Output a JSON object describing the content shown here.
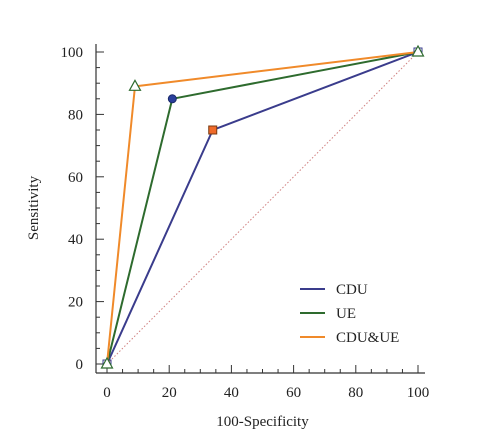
{
  "chart_data": {
    "type": "line",
    "title": "",
    "xlabel": "100-Specificity",
    "ylabel": "Sensitivity",
    "xlim": [
      0,
      100
    ],
    "ylim": [
      0,
      100
    ],
    "x_ticks": [
      0,
      20,
      40,
      60,
      80,
      100
    ],
    "y_ticks": [
      0,
      20,
      40,
      60,
      80,
      100
    ],
    "x_tick_labels": [
      "0",
      "20",
      "40",
      "60",
      "80",
      "100"
    ],
    "y_tick_labels": [
      "0",
      "20",
      "40",
      "60",
      "80",
      "100"
    ],
    "grid": false,
    "legend_position": "bottom-right",
    "reference_line": {
      "x": [
        0,
        100
      ],
      "y": [
        0,
        100
      ],
      "style": "dotted",
      "color": "#d08080"
    },
    "series": [
      {
        "name": "CDU",
        "color": "#3a3c8c",
        "marker": "square",
        "marker_color": "#f06a2a",
        "x": [
          0,
          34,
          100
        ],
        "y": [
          0,
          75,
          100
        ]
      },
      {
        "name": "UE",
        "color": "#2e6b2e",
        "marker": "circle",
        "marker_color": "#2a3f9c",
        "x": [
          0,
          21,
          100
        ],
        "y": [
          0,
          85,
          100
        ]
      },
      {
        "name": "CDU&UE",
        "color": "#f08a2a",
        "marker": "triangle",
        "marker_color": "#ffffff",
        "x": [
          0,
          9,
          100
        ],
        "y": [
          0,
          89,
          100
        ]
      }
    ]
  }
}
